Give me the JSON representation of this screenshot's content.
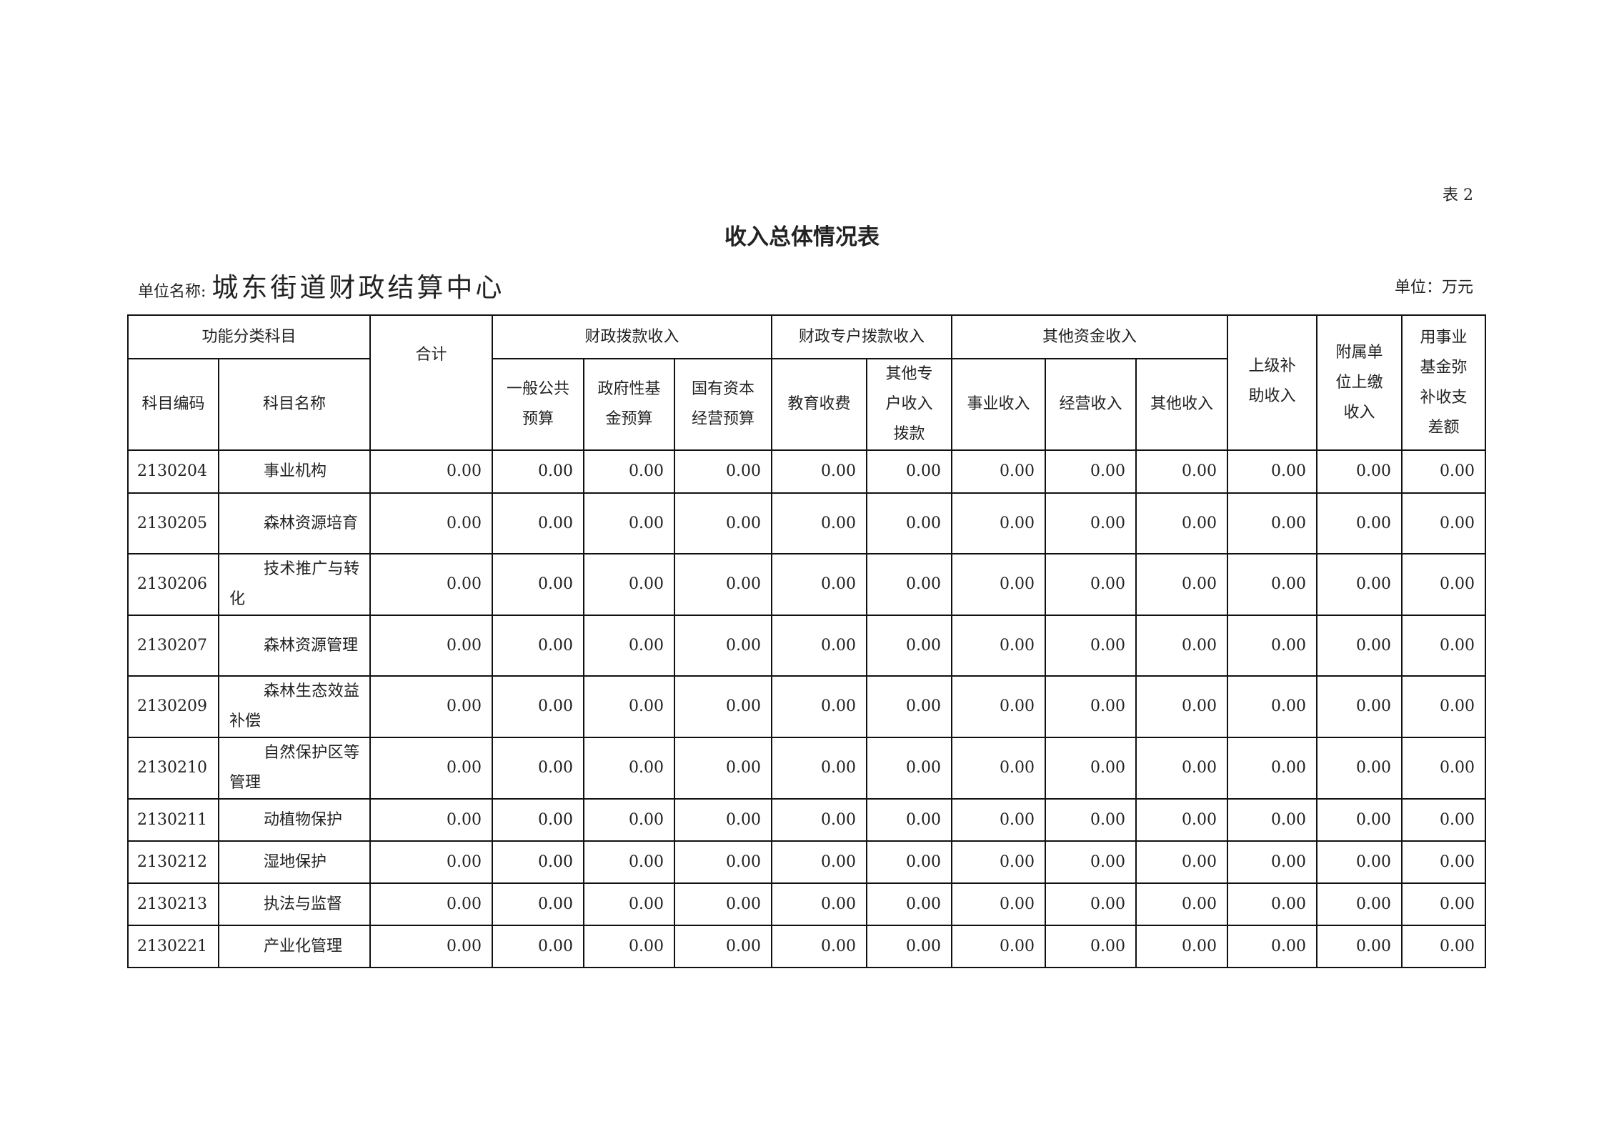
{
  "table_no": "表 2",
  "title": "收入总体情况表",
  "unit_name_label": "单位名称:",
  "unit_name": "城东街道财政结算中心",
  "unit": "单位：万元",
  "headers": {
    "func_cat": "功能分类科目",
    "code": "科目编码",
    "name": "科目名称",
    "total": "合计",
    "fiscal": "财政拨款收入",
    "fiscal_general": "一般公共预算",
    "fiscal_gov_fund": "政府性基金预算",
    "fiscal_state_capital": "国有资本经营预算",
    "special": "财政专户拨款收入",
    "special_edu": "教育收费",
    "special_other": "其他专户收入拨款",
    "other": "其他资金收入",
    "other_business": "事业收入",
    "other_operating": "经营收入",
    "other_other": "其他收入",
    "superior": "上级补助收入",
    "affiliated": "附属单位上缴收入",
    "fund_balance": "用事业基金弥补收支差额"
  },
  "rows": [
    {
      "code": "2130204",
      "name": "事业机构",
      "values": [
        "0.00",
        "0.00",
        "0.00",
        "0.00",
        "0.00",
        "0.00",
        "0.00",
        "0.00",
        "0.00",
        "0.00",
        "0.00",
        "0.00"
      ]
    },
    {
      "code": "2130205",
      "name": "森林资源培育",
      "values": [
        "0.00",
        "0.00",
        "0.00",
        "0.00",
        "0.00",
        "0.00",
        "0.00",
        "0.00",
        "0.00",
        "0.00",
        "0.00",
        "0.00"
      ]
    },
    {
      "code": "2130206",
      "name": "技术推广与转化",
      "values": [
        "0.00",
        "0.00",
        "0.00",
        "0.00",
        "0.00",
        "0.00",
        "0.00",
        "0.00",
        "0.00",
        "0.00",
        "0.00",
        "0.00"
      ]
    },
    {
      "code": "2130207",
      "name": "森林资源管理",
      "values": [
        "0.00",
        "0.00",
        "0.00",
        "0.00",
        "0.00",
        "0.00",
        "0.00",
        "0.00",
        "0.00",
        "0.00",
        "0.00",
        "0.00"
      ]
    },
    {
      "code": "2130209",
      "name": "森林生态效益补偿",
      "values": [
        "0.00",
        "0.00",
        "0.00",
        "0.00",
        "0.00",
        "0.00",
        "0.00",
        "0.00",
        "0.00",
        "0.00",
        "0.00",
        "0.00"
      ]
    },
    {
      "code": "2130210",
      "name": "自然保护区等管理",
      "values": [
        "0.00",
        "0.00",
        "0.00",
        "0.00",
        "0.00",
        "0.00",
        "0.00",
        "0.00",
        "0.00",
        "0.00",
        "0.00",
        "0.00"
      ]
    },
    {
      "code": "2130211",
      "name": "动植物保护",
      "values": [
        "0.00",
        "0.00",
        "0.00",
        "0.00",
        "0.00",
        "0.00",
        "0.00",
        "0.00",
        "0.00",
        "0.00",
        "0.00",
        "0.00"
      ]
    },
    {
      "code": "2130212",
      "name": "湿地保护",
      "values": [
        "0.00",
        "0.00",
        "0.00",
        "0.00",
        "0.00",
        "0.00",
        "0.00",
        "0.00",
        "0.00",
        "0.00",
        "0.00",
        "0.00"
      ]
    },
    {
      "code": "2130213",
      "name": "执法与监督",
      "values": [
        "0.00",
        "0.00",
        "0.00",
        "0.00",
        "0.00",
        "0.00",
        "0.00",
        "0.00",
        "0.00",
        "0.00",
        "0.00",
        "0.00"
      ]
    },
    {
      "code": "2130221",
      "name": "产业化管理",
      "values": [
        "0.00",
        "0.00",
        "0.00",
        "0.00",
        "0.00",
        "0.00",
        "0.00",
        "0.00",
        "0.00",
        "0.00",
        "0.00",
        "0.00"
      ]
    }
  ]
}
